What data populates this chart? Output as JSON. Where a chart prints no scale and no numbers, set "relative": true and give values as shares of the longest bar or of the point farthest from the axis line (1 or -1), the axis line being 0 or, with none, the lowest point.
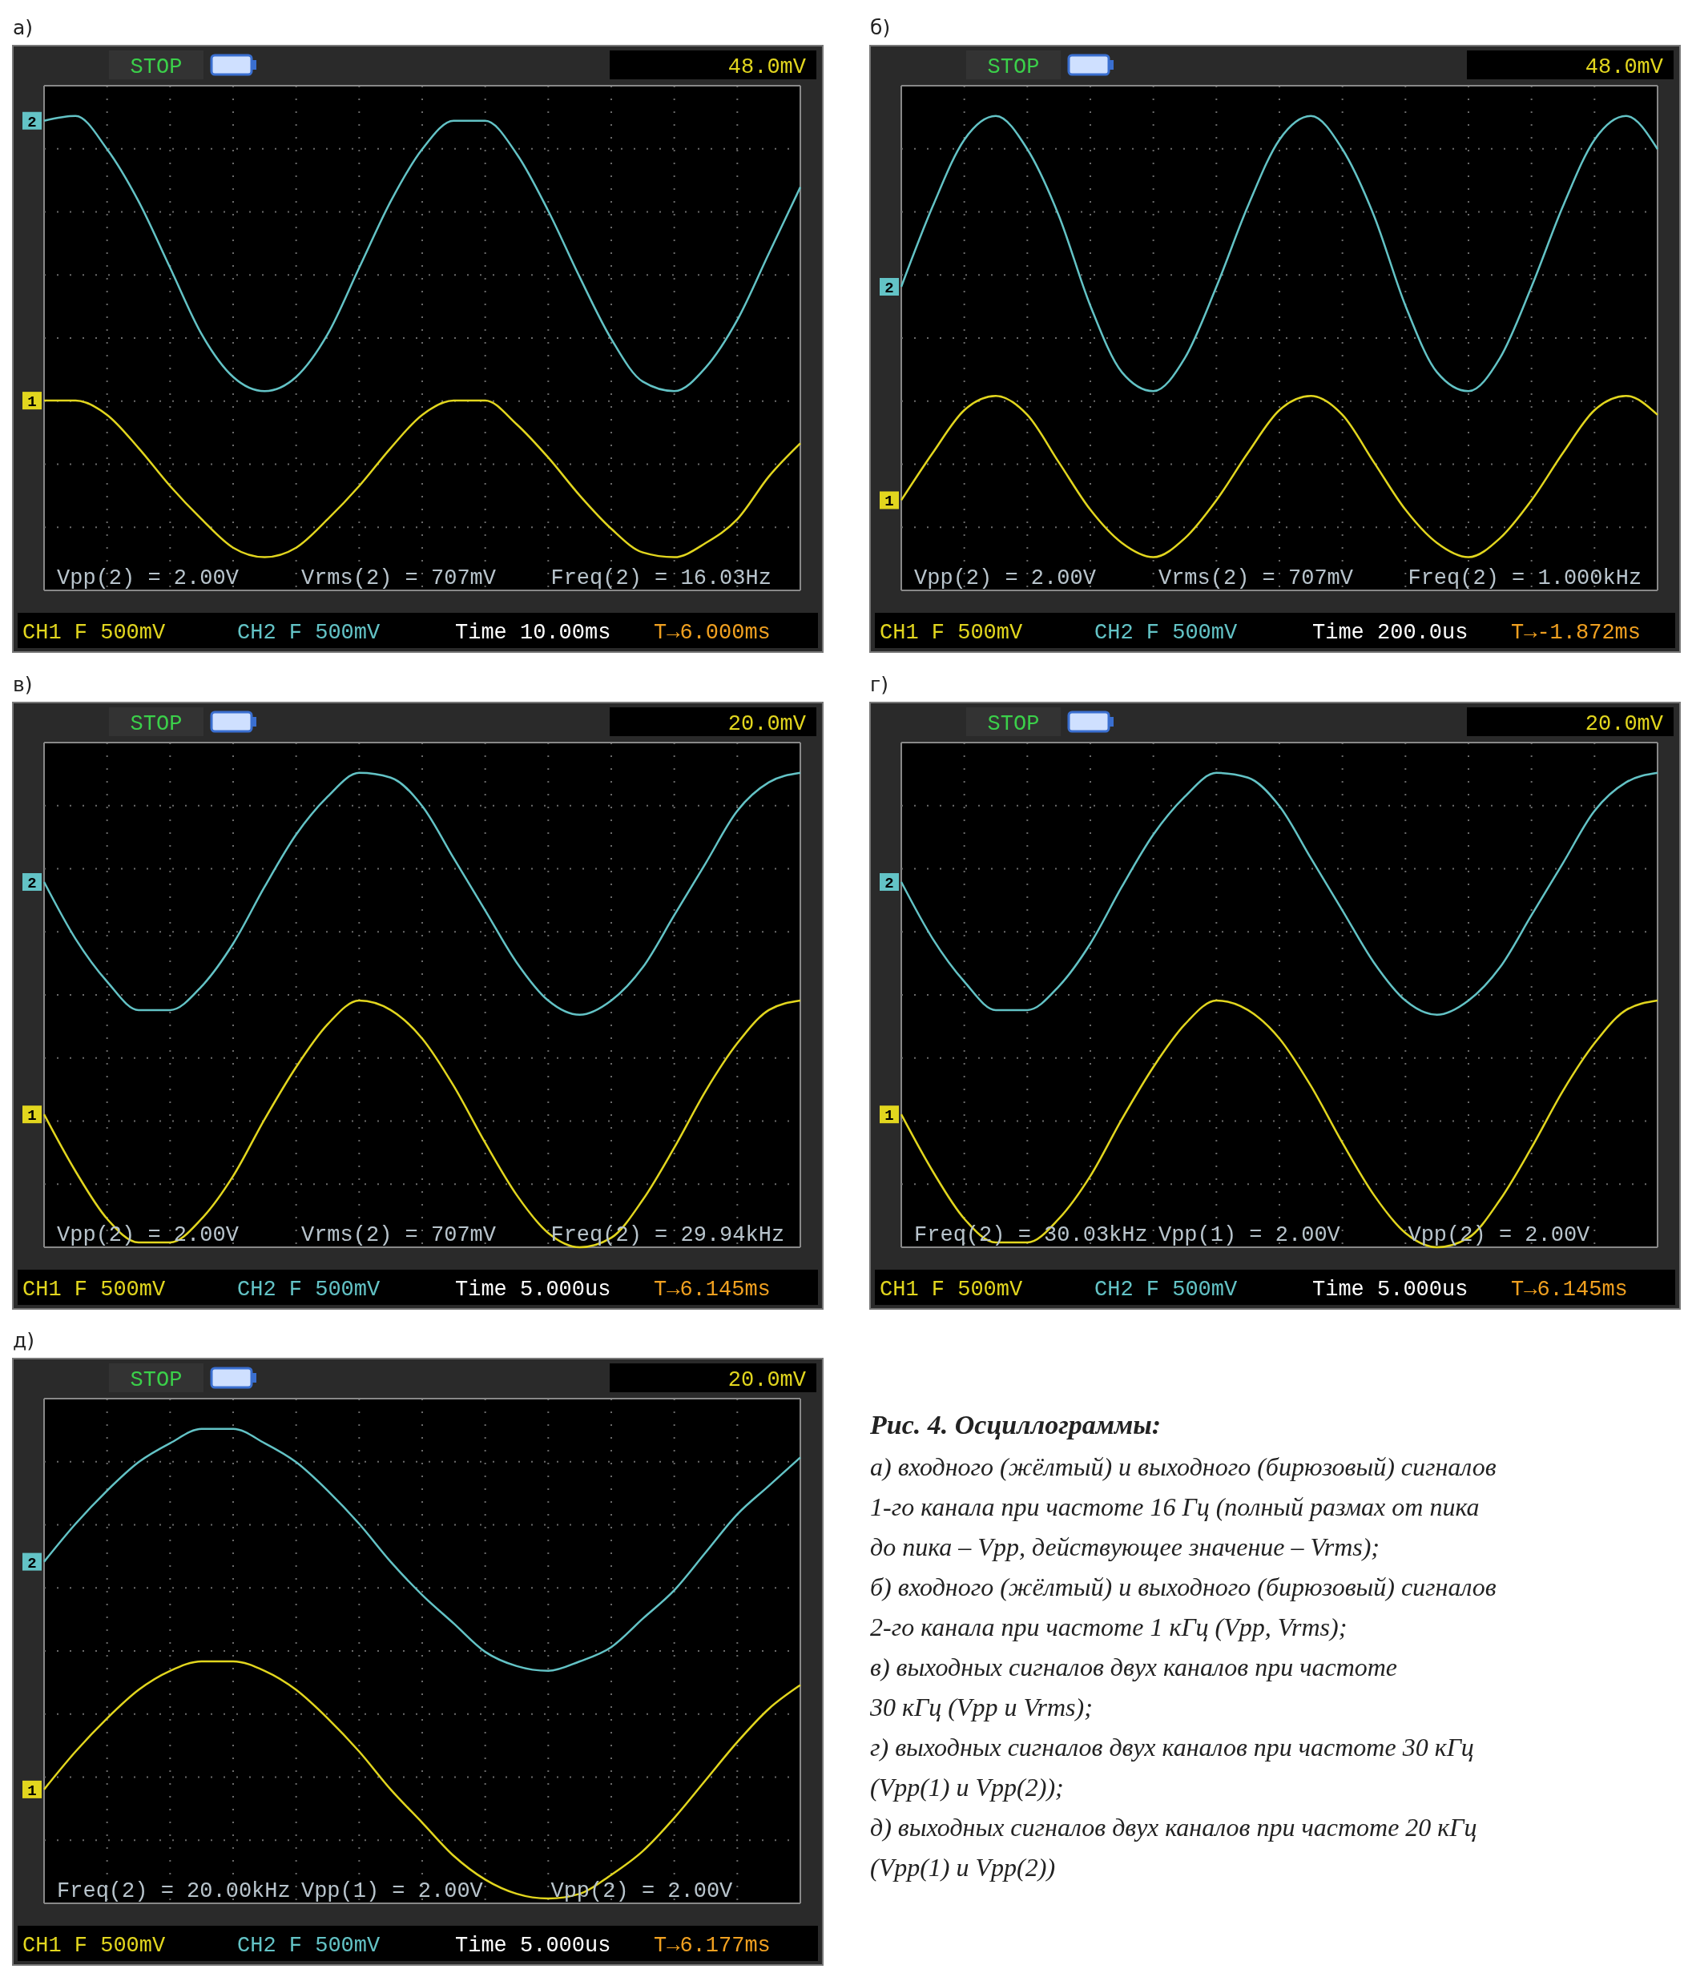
{
  "chart_data": [
    {
      "type": "line",
      "title": "а)",
      "relative": true,
      "grid": true,
      "categories": [
        null,
        null,
        null,
        null,
        null,
        null,
        null,
        null,
        null,
        null,
        null,
        null,
        null,
        null,
        null,
        null,
        null,
        null,
        null,
        null,
        null,
        null,
        null,
        null,
        null
      ],
      "series": [
        {
          "name": "2",
          "color": "#63c3c6",
          "values": [
            0.99,
            1,
            0.93,
            0.82,
            0.68,
            0.54,
            0.45,
            0.42,
            0.45,
            0.54,
            0.68,
            0.82,
            0.93,
            0.99,
            0.99,
            0.92,
            0.8,
            0.66,
            0.53,
            0.44,
            0.42,
            0.47,
            0.57,
            0.71,
            0.85
          ]
        },
        {
          "name": "1",
          "color": "#e2d61e",
          "values": [
            0.4,
            0.4,
            0.37,
            0.3,
            0.22,
            0.15,
            0.09,
            0.07,
            0.09,
            0.15,
            0.22,
            0.3,
            0.37,
            0.4,
            0.4,
            0.35,
            0.28,
            0.2,
            0.13,
            0.08,
            0.07,
            0.1,
            0.15,
            0.24,
            0.31
          ]
        }
      ],
      "annotations": [
        "STOP",
        "48.0mV",
        "Vpp(2) = 2.00V",
        "Vrms(2) = 707mV",
        "Freq(2) = 16.03Hz",
        "CH1 F 500mV",
        "CH2 F 500mV",
        "Time 10.00ms",
        "T→6.000ms"
      ]
    },
    {
      "type": "line",
      "title": "б)",
      "relative": true,
      "grid": true,
      "categories": [
        null,
        null,
        null,
        null,
        null,
        null,
        null,
        null,
        null,
        null,
        null,
        null,
        null,
        null,
        null,
        null,
        null,
        null,
        null,
        null,
        null,
        null,
        null,
        null,
        null
      ],
      "series": [
        {
          "name": "2",
          "color": "#63c3c6",
          "values": [
            0.64,
            0.81,
            0.95,
            1,
            0.93,
            0.79,
            0.6,
            0.46,
            0.42,
            0.49,
            0.64,
            0.81,
            0.95,
            1,
            0.93,
            0.79,
            0.6,
            0.46,
            0.42,
            0.49,
            0.64,
            0.81,
            0.95,
            1,
            0.93
          ]
        },
        {
          "name": "1",
          "color": "#e2d61e",
          "values": [
            0.19,
            0.29,
            0.38,
            0.41,
            0.37,
            0.27,
            0.17,
            0.1,
            0.07,
            0.11,
            0.19,
            0.29,
            0.38,
            0.41,
            0.37,
            0.27,
            0.17,
            0.1,
            0.07,
            0.11,
            0.19,
            0.29,
            0.38,
            0.41,
            0.37
          ]
        }
      ],
      "annotations": [
        "STOP",
        "48.0mV",
        "Vpp(2) = 2.00V",
        "Vrms(2) = 707mV",
        "Freq(2) = 1.000kHz",
        "CH1 F 500mV",
        "CH2 F 500mV",
        "Time 200.0us",
        "T→-1.872ms"
      ]
    },
    {
      "type": "line",
      "title": "в)",
      "relative": true,
      "grid": true,
      "categories": [
        null,
        null,
        null,
        null,
        null,
        null,
        null,
        null,
        null,
        null,
        null,
        null,
        null,
        null,
        null,
        null,
        null,
        null,
        null,
        null,
        null,
        null,
        null,
        null,
        null
      ],
      "series": [
        {
          "name": "2",
          "color": "#63c3c6",
          "values": [
            0.77,
            0.65,
            0.56,
            0.5,
            0.5,
            0.55,
            0.64,
            0.76,
            0.87,
            0.95,
            1,
            0.99,
            0.93,
            0.82,
            0.71,
            0.6,
            0.52,
            0.49,
            0.52,
            0.59,
            0.7,
            0.81,
            0.92,
            0.98,
            1
          ]
        },
        {
          "name": "1",
          "color": "#e2d61e",
          "values": [
            0.28,
            0.16,
            0.06,
            0.01,
            0.01,
            0.06,
            0.15,
            0.27,
            0.38,
            0.47,
            0.52,
            0.5,
            0.44,
            0.34,
            0.22,
            0.11,
            0.03,
            0,
            0.02,
            0.1,
            0.21,
            0.33,
            0.43,
            0.5,
            0.52
          ]
        }
      ],
      "annotations": [
        "STOP",
        "20.0mV",
        "Vpp(2) = 2.00V",
        "Vrms(2) = 707mV",
        "Freq(2) = 29.94kHz",
        "CH1 F 500mV",
        "CH2 F 500mV",
        "Time 5.000us",
        "T→6.145ms"
      ]
    },
    {
      "type": "line",
      "title": "г)",
      "relative": true,
      "grid": true,
      "categories": [
        null,
        null,
        null,
        null,
        null,
        null,
        null,
        null,
        null,
        null,
        null,
        null,
        null,
        null,
        null,
        null,
        null,
        null,
        null,
        null,
        null,
        null,
        null,
        null,
        null
      ],
      "series": [
        {
          "name": "2",
          "color": "#63c3c6",
          "values": [
            0.77,
            0.65,
            0.56,
            0.5,
            0.5,
            0.55,
            0.64,
            0.76,
            0.87,
            0.95,
            1,
            0.99,
            0.93,
            0.82,
            0.71,
            0.6,
            0.52,
            0.49,
            0.52,
            0.59,
            0.7,
            0.81,
            0.92,
            0.98,
            1
          ]
        },
        {
          "name": "1",
          "color": "#e2d61e",
          "values": [
            0.28,
            0.16,
            0.06,
            0.01,
            0.01,
            0.06,
            0.15,
            0.27,
            0.38,
            0.47,
            0.52,
            0.5,
            0.44,
            0.34,
            0.22,
            0.11,
            0.03,
            0,
            0.02,
            0.1,
            0.21,
            0.33,
            0.43,
            0.5,
            0.52
          ]
        }
      ],
      "annotations": [
        "STOP",
        "20.0mV",
        "Freq(2) = 30.03kHz",
        "Vpp(1) = 2.00V",
        "Vpp(2) = 2.00V",
        "CH1 F 500mV",
        "CH2 F 500mV",
        "Time 5.000us",
        "T→6.145ms"
      ]
    },
    {
      "type": "line",
      "title": "д)",
      "relative": true,
      "grid": true,
      "categories": [
        null,
        null,
        null,
        null,
        null,
        null,
        null,
        null,
        null,
        null,
        null,
        null,
        null,
        null,
        null,
        null,
        null,
        null,
        null,
        null,
        null,
        null,
        null,
        null,
        null
      ],
      "series": [
        {
          "name": "2",
          "color": "#63c3c6",
          "values": [
            0.72,
            0.8,
            0.87,
            0.93,
            0.97,
            1,
            1,
            0.97,
            0.93,
            0.87,
            0.8,
            0.72,
            0.65,
            0.59,
            0.53,
            0.5,
            0.49,
            0.51,
            0.54,
            0.6,
            0.66,
            0.74,
            0.82,
            0.88,
            0.94
          ]
        },
        {
          "name": "1",
          "color": "#e2d61e",
          "values": [
            0.24,
            0.32,
            0.39,
            0.45,
            0.49,
            0.51,
            0.51,
            0.49,
            0.45,
            0.39,
            0.32,
            0.24,
            0.17,
            0.1,
            0.05,
            0.02,
            0.01,
            0.02,
            0.06,
            0.11,
            0.18,
            0.26,
            0.34,
            0.41,
            0.46
          ]
        }
      ],
      "annotations": [
        "STOP",
        "20.0mV",
        "Freq(2) = 20.00kHz",
        "Vpp(1) = 2.00V",
        "Vpp(2) = 2.00V",
        "CH1 F 500mV",
        "CH2 F 500mV",
        "Time 5.000us",
        "T→6.177ms"
      ]
    },
    {
      "type": "other",
      "title": "Рис. 4. Осциллограммы:",
      "annotations": [
        "а) входного (жёлтый) и выходного (бирюзовый) сигналов",
        "1-го канала при частоте 16 Гц (полный размах от пика",
        "до пика – Vpp, действующее значение – Vrms);",
        "б) входного (жёлтый) и выходного (бирюзовый) сигналов",
        "2-го канала при частоте 1 кГц (Vpp, Vrms);",
        "в) выходных сигналов двух каналов при частоте",
        "30 кГц (Vpp и Vrms);",
        "г) выходных сигналов двух каналов при частоте 30 кГц",
        "(Vpp(1) и Vpp(2));",
        "д) выходных сигналов двух каналов при частоте 20 кГц",
        "(Vpp(1) и Vpp(2))"
      ]
    }
  ]
}
